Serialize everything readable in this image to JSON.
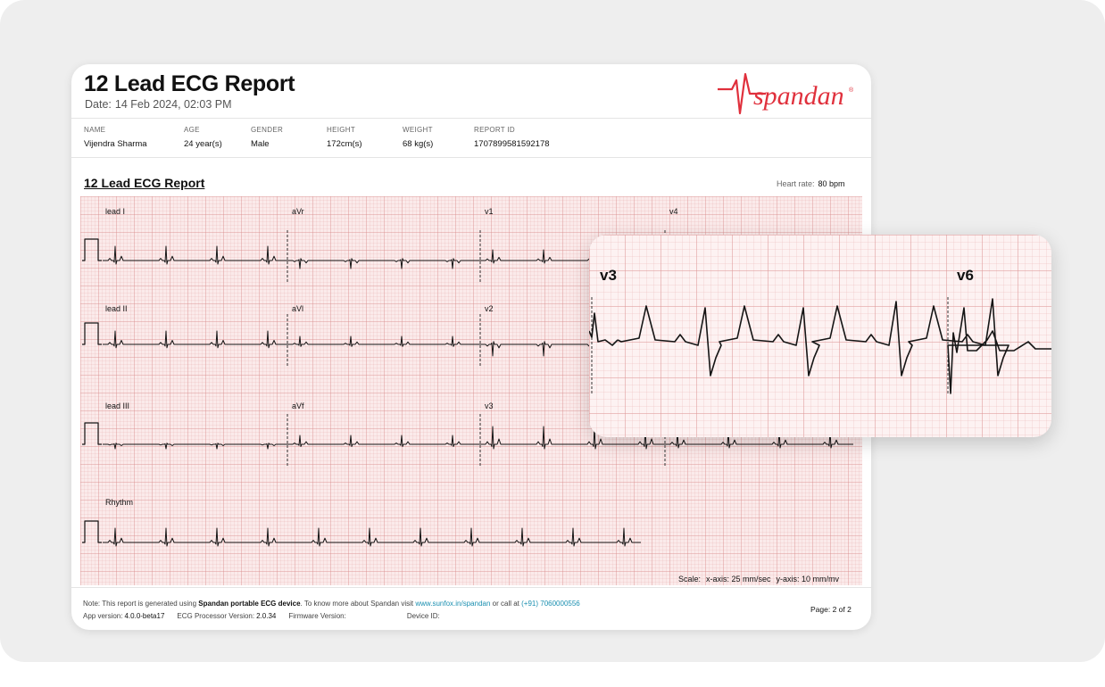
{
  "report": {
    "title": "12 Lead ECG Report",
    "date_label": "Date:",
    "date_value": "14 Feb 2024, 02:03 PM",
    "brand": "spandan",
    "patient": [
      {
        "label": "NAME",
        "value": "Vijendra Sharma"
      },
      {
        "label": "AGE",
        "value": "24 year(s)"
      },
      {
        "label": "GENDER",
        "value": "Male"
      },
      {
        "label": "HEIGHT",
        "value": "172cm(s)"
      },
      {
        "label": "WEIGHT",
        "value": "68 kg(s)"
      },
      {
        "label": "REPORT ID",
        "value": "1707899581592178"
      }
    ],
    "section_title": "12 Lead ECG Report",
    "heart_rate_label": "Heart rate:",
    "heart_rate_value": "80 bpm",
    "leads": {
      "lead_i": "lead I",
      "avr": "aVr",
      "v1": "v1",
      "v4": "v4",
      "lead_ii": "lead II",
      "avl": "aVl",
      "v2": "v2",
      "lead_iii": "lead III",
      "avf": "aVf",
      "v3": "v3",
      "rhythm": "Rhythm"
    },
    "scale_label": "Scale:",
    "scale_x": "x-axis: 25 mm/sec",
    "scale_y": "y-axis: 10 mm/mv",
    "note": {
      "prefix": "Note: This report is generated using",
      "device": "Spandan portable ECG device",
      "middle": ". To know more about Spandan visit",
      "url": "www.sunfox.in/spandan",
      "call": "or call at",
      "phone": "(+91) 7060000556"
    },
    "app_version_label": "App version:",
    "app_version": "4.0.0-beta17",
    "ecg_processor_label": "ECG Processor Version:",
    "ecg_processor": "2.0.34",
    "firmware_label": "Firmware Version:",
    "firmware": "",
    "device_id_label": "Device ID:",
    "device_id": "",
    "page": "Page: 2 of 2"
  },
  "zoom": {
    "label_left": "v3",
    "label_right": "v6"
  },
  "colors": {
    "brand": "#e0303c",
    "grid_bg": "#fbeaea",
    "link": "#1a8fb0"
  }
}
